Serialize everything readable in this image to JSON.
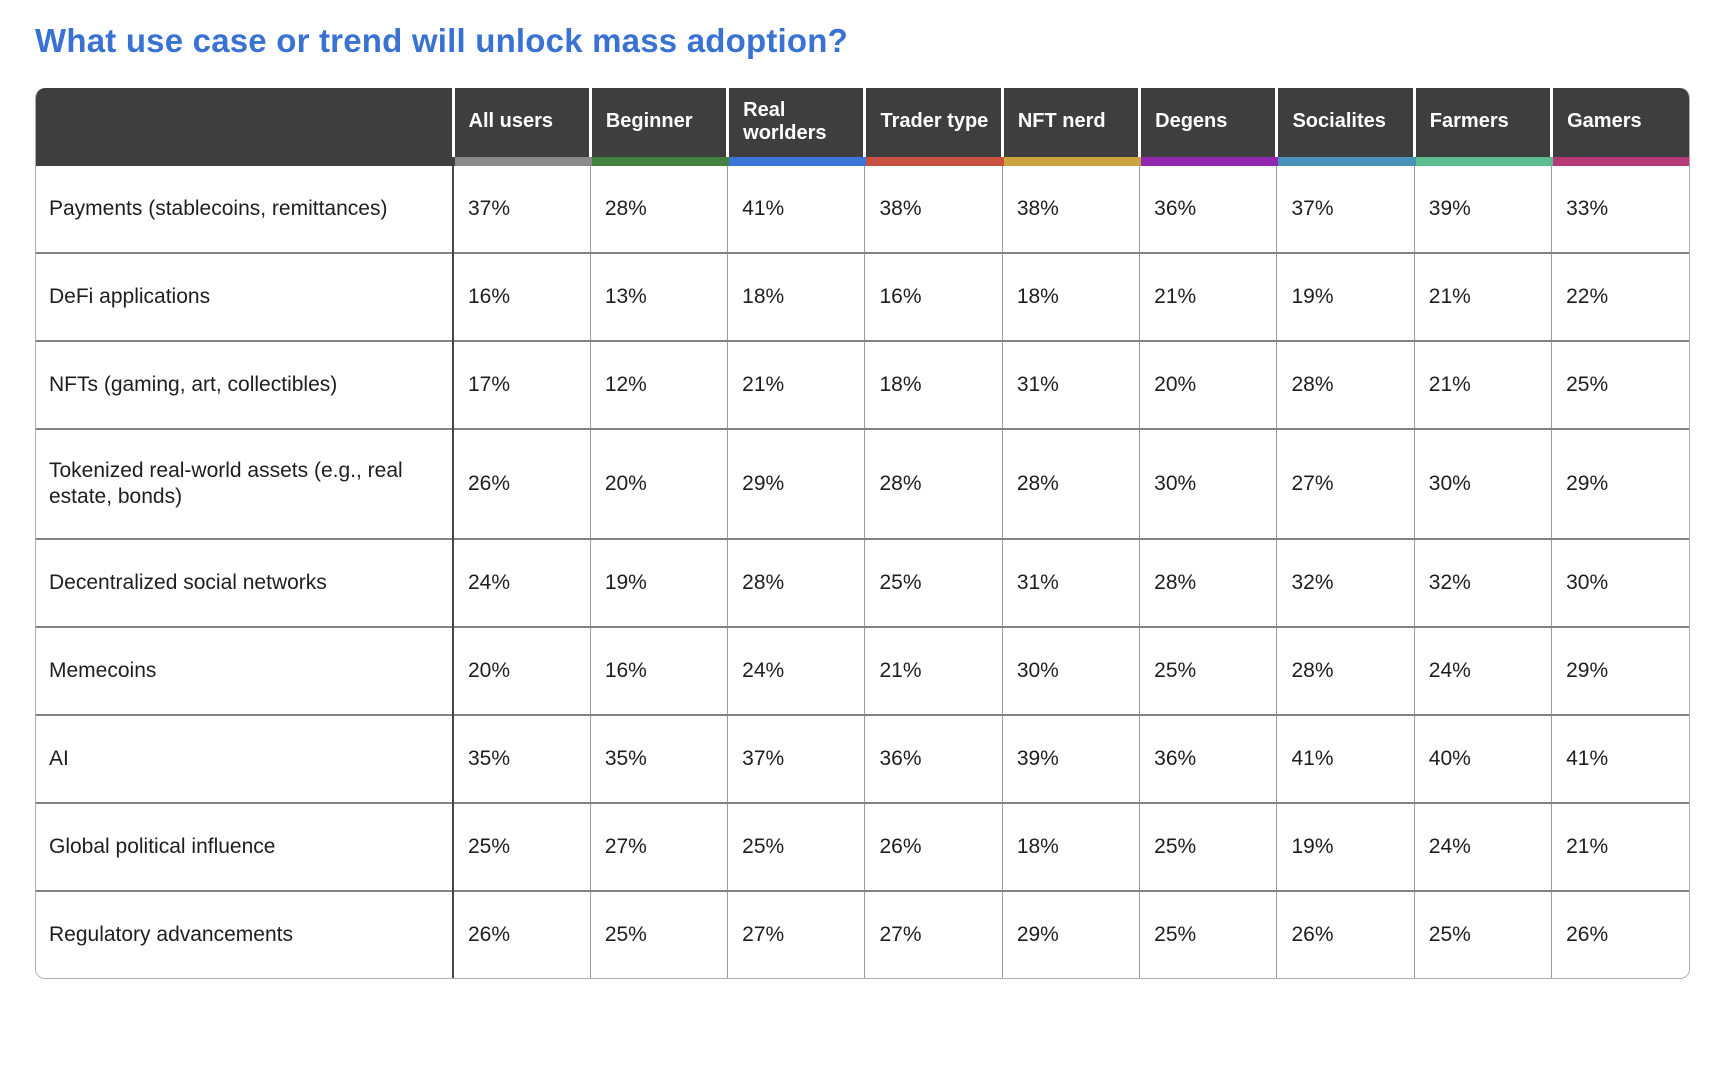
{
  "title": "What use case or trend will unlock mass adoption?",
  "colors": {
    "title_text": "#3A72D4",
    "header_bg": "#3E3E3E",
    "header_text": "#FFFFFF",
    "body_text": "#1E1E1E",
    "row_border": "#828282",
    "column_border": "#9B9B9B"
  },
  "chart_data": {
    "type": "table",
    "title": "What use case or trend will unlock mass adoption?",
    "columns": [
      {
        "label": "All users",
        "color": "#8A8A8A"
      },
      {
        "label": "Beginner",
        "color": "#44813F"
      },
      {
        "label": "Real worlders",
        "color": "#3D74D8"
      },
      {
        "label": "Trader type",
        "color": "#C8503F"
      },
      {
        "label": "NFT nerd",
        "color": "#CCA33C"
      },
      {
        "label": "Degens",
        "color": "#9227B0"
      },
      {
        "label": "Socialites",
        "color": "#4B92BA"
      },
      {
        "label": "Farmers",
        "color": "#5CBD8E"
      },
      {
        "label": "Gamers",
        "color": "#B53A75"
      }
    ],
    "rows": [
      {
        "label": "Payments (stablecoins, remittances)",
        "values": [
          "37%",
          "28%",
          "41%",
          "38%",
          "38%",
          "36%",
          "37%",
          "39%",
          "33%"
        ]
      },
      {
        "label": "DeFi applications",
        "values": [
          "16%",
          "13%",
          "18%",
          "16%",
          "18%",
          "21%",
          "19%",
          "21%",
          "22%"
        ]
      },
      {
        "label": "NFTs (gaming, art, collectibles)",
        "values": [
          "17%",
          "12%",
          "21%",
          "18%",
          "31%",
          "20%",
          "28%",
          "21%",
          "25%"
        ]
      },
      {
        "label": "Tokenized real-world assets (e.g., real estate, bonds)",
        "values": [
          "26%",
          "20%",
          "29%",
          "28%",
          "28%",
          "30%",
          "27%",
          "30%",
          "29%"
        ]
      },
      {
        "label": "Decentralized social networks",
        "values": [
          "24%",
          "19%",
          "28%",
          "25%",
          "31%",
          "28%",
          "32%",
          "32%",
          "30%"
        ]
      },
      {
        "label": "Memecoins",
        "values": [
          "20%",
          "16%",
          "24%",
          "21%",
          "30%",
          "25%",
          "28%",
          "24%",
          "29%"
        ]
      },
      {
        "label": "AI",
        "values": [
          "35%",
          "35%",
          "37%",
          "36%",
          "39%",
          "36%",
          "41%",
          "40%",
          "41%"
        ]
      },
      {
        "label": "Global political influence",
        "values": [
          "25%",
          "27%",
          "25%",
          "26%",
          "18%",
          "25%",
          "19%",
          "24%",
          "21%"
        ]
      },
      {
        "label": "Regulatory advancements",
        "values": [
          "26%",
          "25%",
          "27%",
          "27%",
          "29%",
          "25%",
          "26%",
          "25%",
          "26%"
        ]
      }
    ]
  }
}
